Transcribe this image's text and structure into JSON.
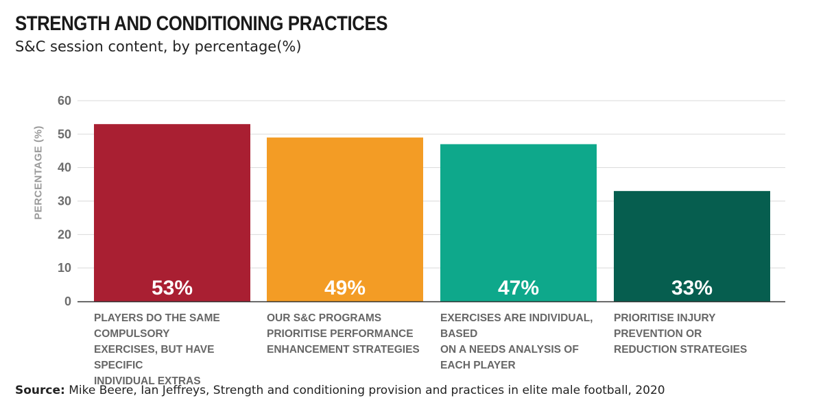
{
  "title": "STRENGTH AND CONDITIONING PRACTICES",
  "subtitle": "S&C session content, by percentage(%)",
  "source": {
    "label": "Source:",
    "text": "Mike Beere, Ian Jeffreys, Strength and conditioning provision and practices in elite male football, 2020"
  },
  "colors": {
    "bar1": "#a91f32",
    "bar2": "#f39c25",
    "bar3": "#0ea88b",
    "bar4": "#065e4f",
    "grid": "#d9d9d9",
    "axis": "#333333"
  },
  "chart_data": {
    "type": "bar",
    "title": "STRENGTH AND CONDITIONING PRACTICES",
    "subtitle": "S&C session content, by percentage(%)",
    "xlabel": "",
    "ylabel": "PERCENTAGE (%)",
    "ylim": [
      0,
      60
    ],
    "yticks": [
      0,
      10,
      20,
      30,
      40,
      50,
      60
    ],
    "grid": true,
    "legend": "none",
    "categories": [
      "PLAYERS DO THE SAME COMPULSORY\nEXERCISES, BUT HAVE SPECIFIC\nINDIVIDUAL EXTRAS",
      "OUR S&C PROGRAMS\nPRIORITISE PERFORMANCE\nENHANCEMENT STRATEGIES",
      "EXERCISES ARE INDIVIDUAL, BASED\nON A NEEDS ANALYSIS OF\nEACH PLAYER",
      "PRIORITISE INJURY PREVENTION OR\nREDUCTION STRATEGIES"
    ],
    "values": [
      53,
      49,
      47,
      33
    ],
    "value_labels": [
      "53%",
      "49%",
      "47%",
      "33%"
    ]
  }
}
